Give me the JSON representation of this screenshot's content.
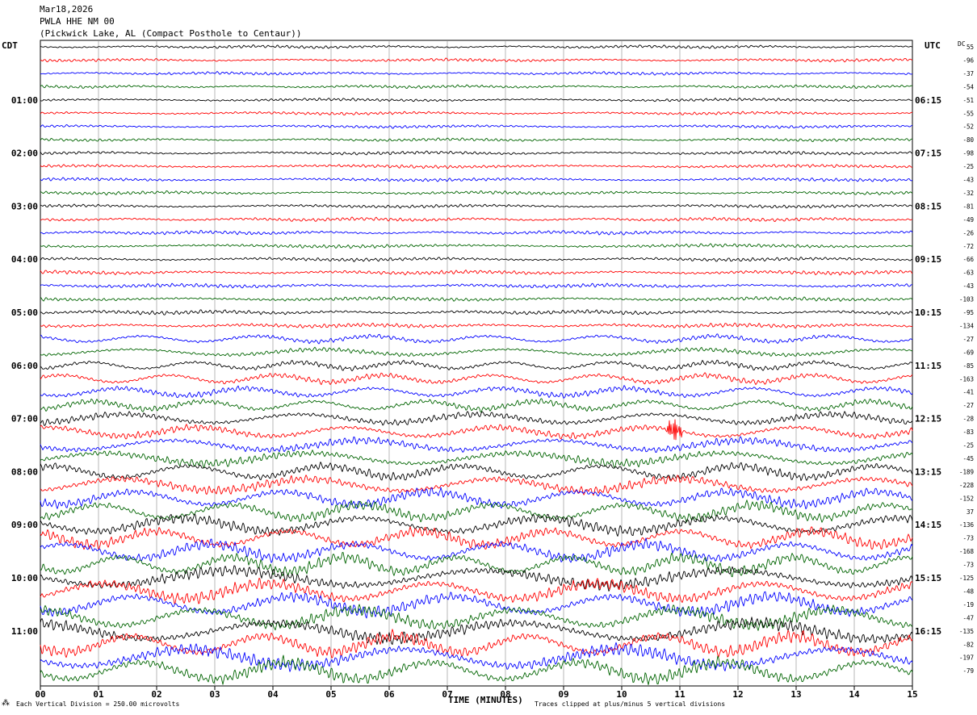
{
  "header": {
    "date": "Mar18,2026",
    "station": "PWLA HHE NM 00",
    "location": "(Pickwick Lake, AL (Compact Posthole to Centaur))"
  },
  "axis_labels": {
    "left_tz": "CDT",
    "right_tz": "UTC",
    "dc_label": "DC",
    "x_title": "TIME (MINUTES)"
  },
  "footer": {
    "corner_mark": "⁂",
    "scale_note": "Each Vertical Division =  250.00 microvolts",
    "clip_note": "Traces clipped at plus/minus 5 vertical divisions"
  },
  "colors": {
    "trace_cycle": [
      "#000000",
      "#ff0000",
      "#0000ff",
      "#006400"
    ],
    "grid": "#888888"
  },
  "chart_data": {
    "type": "line",
    "description_of_content": "helicorder",
    "x_ticks": [
      "00",
      "01",
      "02",
      "03",
      "04",
      "05",
      "06",
      "07",
      "08",
      "09",
      "10",
      "11",
      "12",
      "13",
      "14",
      "15"
    ],
    "xlim": [
      0,
      15
    ],
    "left_hour_labels": [
      "01:00",
      "02:00",
      "03:00",
      "04:00",
      "05:00",
      "06:00",
      "07:00",
      "08:00",
      "09:00",
      "10:00",
      "11:00"
    ],
    "right_hour_labels": [
      "06:15",
      "07:15",
      "08:15",
      "09:15",
      "10:15",
      "11:15",
      "12:15",
      "13:15",
      "14:15",
      "15:15",
      "16:15"
    ],
    "hour_label_trace_index": [
      4,
      8,
      12,
      16,
      20,
      24,
      28,
      32,
      36,
      40,
      44
    ],
    "dc_offsets": [
      "55",
      "-96",
      "-37",
      "-54",
      "-51",
      "-55",
      "-52",
      "-80",
      "-98",
      "-25",
      "-43",
      "-32",
      "-81",
      "-49",
      "-26",
      "-72",
      "-66",
      "-63",
      "-43",
      "-103",
      "-95",
      "-134",
      "-27",
      "-69",
      "-85",
      "-163",
      "-41",
      "-27",
      "-28",
      "-83",
      "-25",
      "-45",
      "-189",
      "-228",
      "-152",
      "37",
      "-136",
      "-73",
      "-168",
      "-73",
      "-125",
      "-48",
      "-19",
      "-47",
      "-135",
      "-82",
      "-197",
      "-79"
    ],
    "trace_count": 48,
    "trace_amplitude_divisions": [
      1,
      1,
      1,
      1,
      1,
      1,
      1,
      1,
      1.1,
      1.1,
      1.1,
      1.1,
      1.1,
      1.2,
      1.2,
      1.2,
      1.2,
      1.3,
      1.3,
      1.3,
      1.4,
      1.4,
      1.5,
      1.5,
      1.7,
      1.9,
      2,
      2.1,
      2.3,
      2.4,
      2.6,
      2.8,
      3,
      3.2,
      3.4,
      3.5,
      3.6,
      3.7,
      3.8,
      3.9,
      4,
      4.1,
      4.2,
      4.2,
      4.3,
      4.4,
      4.5,
      4.5
    ],
    "events": [
      {
        "trace_index": 29,
        "minute": 10.9,
        "note": "spike"
      }
    ]
  }
}
